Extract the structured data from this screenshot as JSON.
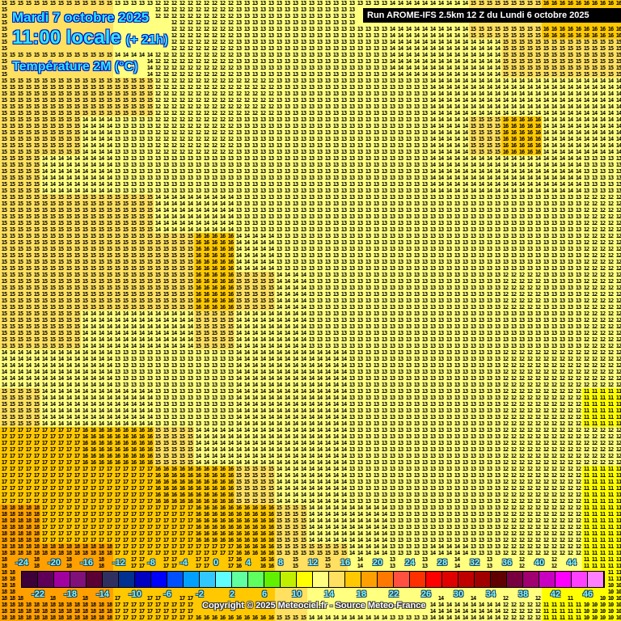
{
  "header": {
    "date": "Mardi 7 octobre 2025",
    "time": "11:00 locale",
    "lead": "(+ 21h)",
    "parameter": "Température 2M (°C)",
    "run": "Run AROME-IFS 2.5km 12 Z du Lundi 6 octobre 2025"
  },
  "copyright": "Copyright © 2025 Meteociel.fr - Source Meteo-France",
  "temperature_field": [
    [
      15,
      15,
      15,
      13,
      12,
      12,
      13,
      13,
      13,
      13,
      14,
      14,
      15,
      15,
      16,
      16
    ],
    [
      15,
      15,
      15,
      14,
      12,
      12,
      13,
      13,
      13,
      13,
      14,
      14,
      14,
      15,
      15,
      15
    ],
    [
      15,
      15,
      15,
      15,
      12,
      12,
      12,
      13,
      13,
      13,
      13,
      14,
      14,
      14,
      14,
      14
    ],
    [
      15,
      15,
      14,
      13,
      12,
      12,
      13,
      13,
      13,
      13,
      13,
      14,
      15,
      16,
      14,
      14
    ],
    [
      15,
      14,
      14,
      13,
      13,
      13,
      13,
      13,
      13,
      13,
      13,
      14,
      14,
      14,
      14,
      13
    ],
    [
      15,
      15,
      15,
      15,
      14,
      14,
      13,
      13,
      13,
      13,
      13,
      13,
      13,
      13,
      13,
      12
    ],
    [
      15,
      15,
      15,
      15,
      15,
      16,
      14,
      13,
      13,
      13,
      13,
      13,
      13,
      13,
      13,
      12
    ],
    [
      15,
      15,
      15,
      15,
      15,
      16,
      15,
      14,
      13,
      13,
      13,
      13,
      13,
      12,
      13,
      12
    ],
    [
      15,
      15,
      14,
      14,
      14,
      15,
      14,
      14,
      13,
      13,
      13,
      13,
      13,
      13,
      13,
      12
    ],
    [
      14,
      14,
      14,
      13,
      13,
      13,
      14,
      14,
      14,
      13,
      13,
      13,
      13,
      12,
      12,
      12
    ],
    [
      15,
      14,
      14,
      14,
      13,
      13,
      14,
      14,
      14,
      13,
      13,
      13,
      13,
      12,
      12,
      11
    ],
    [
      17,
      17,
      16,
      16,
      15,
      14,
      14,
      14,
      14,
      13,
      13,
      13,
      13,
      12,
      12,
      12
    ],
    [
      17,
      17,
      17,
      17,
      16,
      16,
      15,
      14,
      14,
      13,
      13,
      13,
      13,
      12,
      12,
      11
    ],
    [
      18,
      17,
      17,
      17,
      17,
      16,
      16,
      15,
      14,
      14,
      13,
      13,
      13,
      12,
      12,
      11
    ],
    [
      18,
      18,
      18,
      17,
      17,
      17,
      16,
      15,
      15,
      14,
      13,
      14,
      13,
      12,
      12,
      11
    ],
    [
      18,
      18,
      18,
      17,
      17,
      16,
      16,
      15,
      14,
      14,
      13,
      14,
      14,
      12,
      11,
      10
    ]
  ],
  "legend": {
    "top_labels": [
      "-24",
      "-20",
      "-16",
      "-12",
      "-8",
      "-4",
      "0",
      "4",
      "8",
      "12",
      "16",
      "20",
      "24",
      "28",
      "32",
      "36",
      "40",
      "44"
    ],
    "bottom_labels": [
      "-22",
      "-18",
      "-14",
      "-10",
      "-6",
      "-2",
      "2",
      "6",
      "10",
      "14",
      "18",
      "22",
      "26",
      "30",
      "34",
      "38",
      "42",
      "46"
    ],
    "colors": [
      "#3d0038",
      "#5e0058",
      "#a000a0",
      "#80107a",
      "#5a0035",
      "#303060",
      "#003090",
      "#0000c0",
      "#0000ff",
      "#0050ff",
      "#00a0ff",
      "#30c8ff",
      "#60ffff",
      "#60ffa0",
      "#60ff60",
      "#60f000",
      "#c0f000",
      "#ffff00",
      "#ffff80",
      "#ffe060",
      "#ffc800",
      "#ffa000",
      "#ff7800",
      "#ff5040",
      "#ff3000",
      "#ff0000",
      "#e00000",
      "#c00000",
      "#a00000",
      "#600000",
      "#780040",
      "#a00070",
      "#c800c0",
      "#ff00ff",
      "#ff40ff",
      "#ff80ff"
    ]
  }
}
